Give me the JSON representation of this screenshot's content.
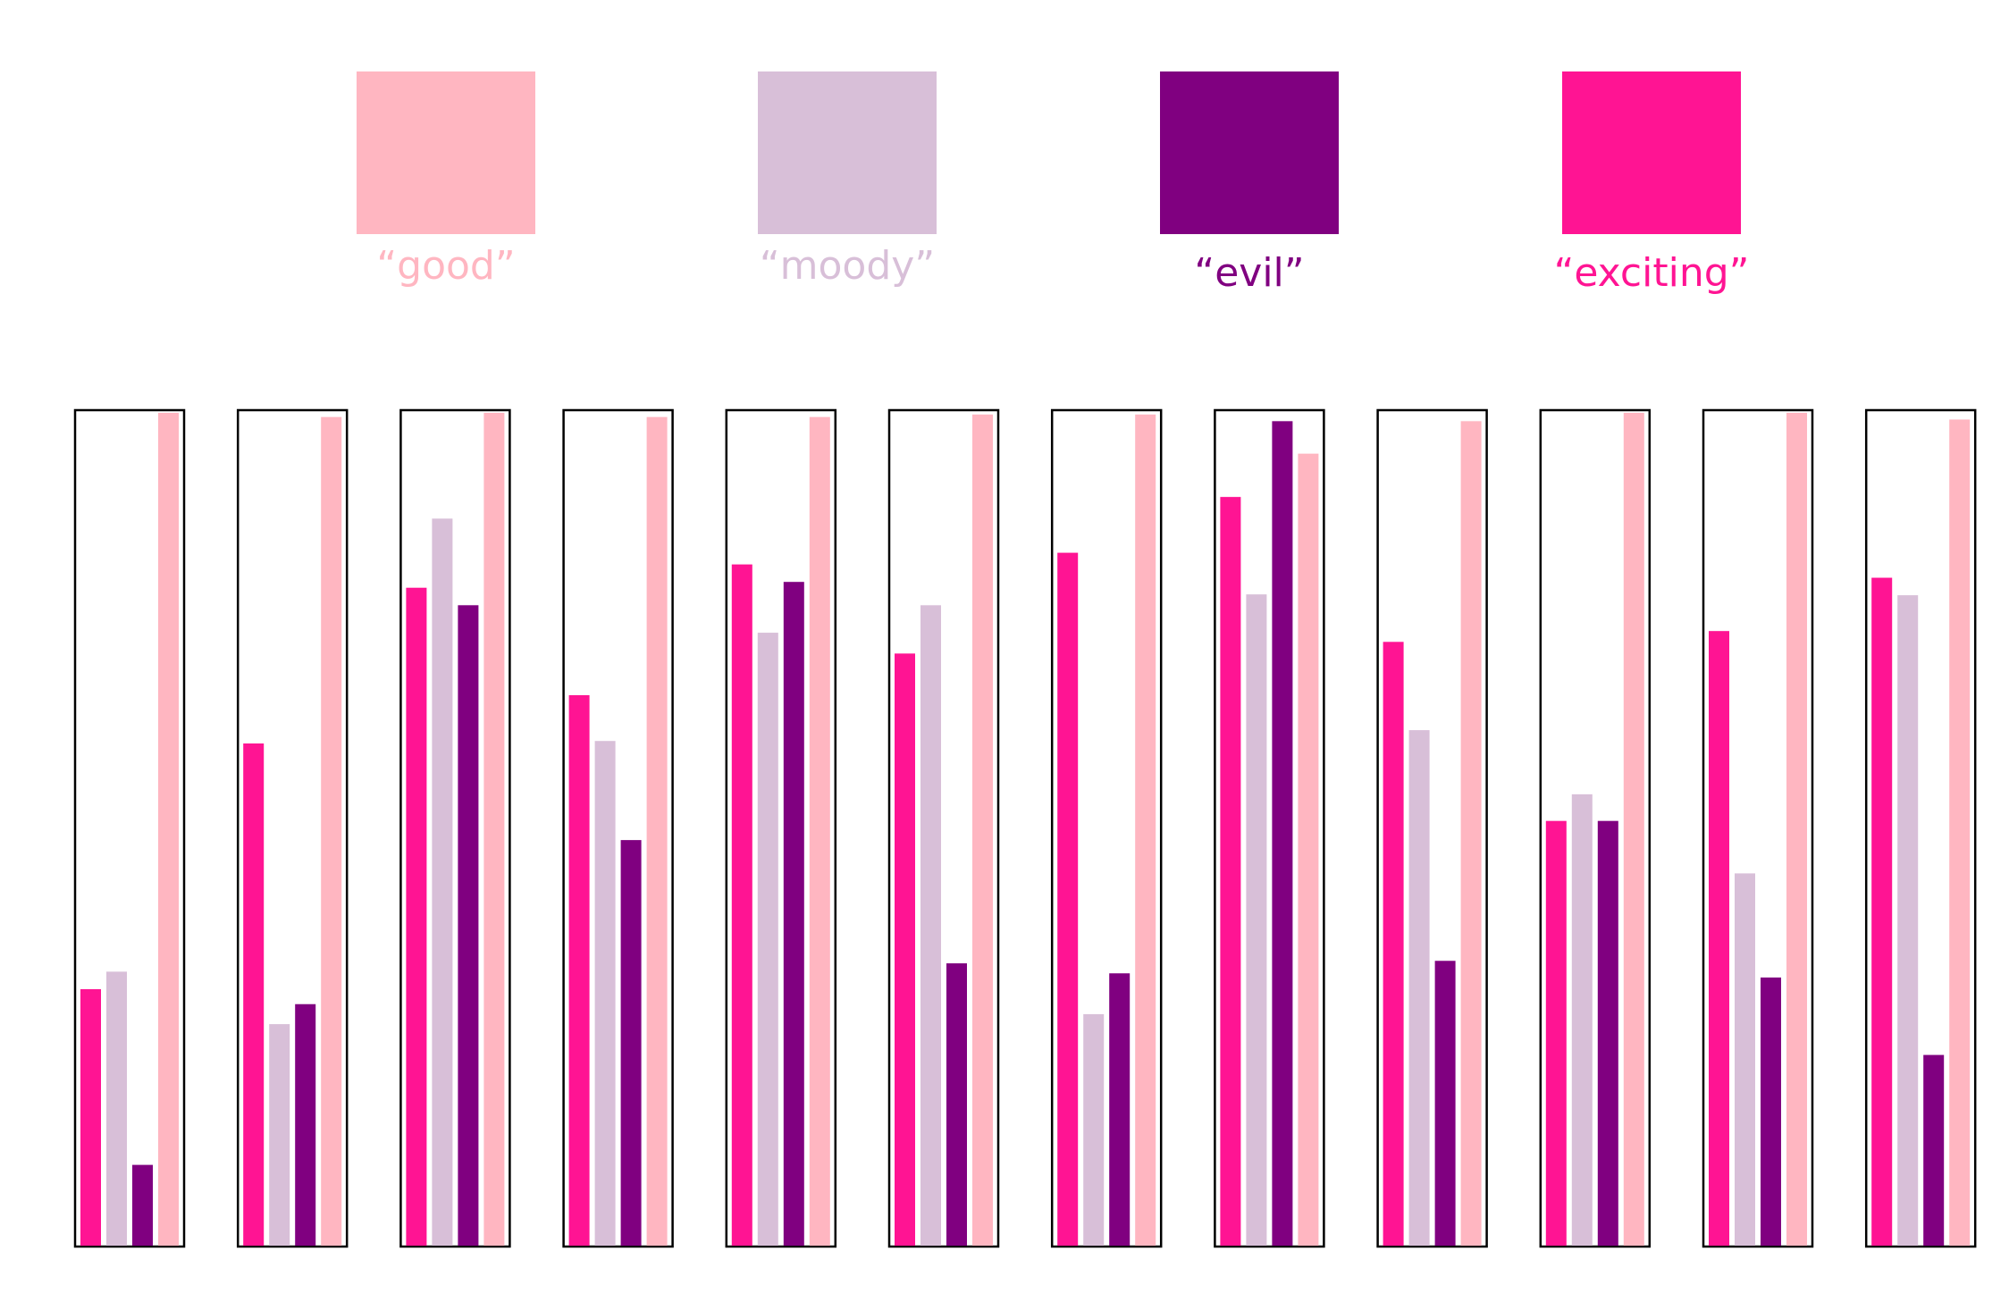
{
  "legend": [
    {
      "label": "“good”",
      "color": "#FFB6C1"
    },
    {
      "label": "“moody”",
      "color": "#D8BFD8"
    },
    {
      "label": "“evil”",
      "color": "#800080"
    },
    {
      "label": "“exciting”",
      "color": "#FF1493"
    }
  ],
  "chart_data": {
    "type": "bar",
    "ylim": [
      0,
      100
    ],
    "grid": false,
    "legend_position": "top",
    "series_order_in_group": [
      "exciting",
      "moody",
      "evil",
      "good"
    ],
    "groups": [
      {
        "exciting": 30.8,
        "moody": 32.9,
        "evil": 9.7,
        "good": 100
      },
      {
        "exciting": 60.3,
        "moody": 26.6,
        "evil": 29.0,
        "good": 99.5
      },
      {
        "exciting": 79.0,
        "moody": 87.3,
        "evil": 76.9,
        "good": 100
      },
      {
        "exciting": 66.1,
        "moody": 60.6,
        "evil": 48.7,
        "good": 99.5
      },
      {
        "exciting": 81.8,
        "moody": 73.6,
        "evil": 79.7,
        "good": 99.5
      },
      {
        "exciting": 71.1,
        "moody": 76.9,
        "evil": 33.9,
        "good": 99.8
      },
      {
        "exciting": 83.2,
        "moody": 27.8,
        "evil": 32.7,
        "good": 99.8
      },
      {
        "exciting": 89.9,
        "moody": 78.2,
        "evil": 99.0,
        "good": 95.1
      },
      {
        "exciting": 72.5,
        "moody": 61.9,
        "evil": 34.2,
        "good": 99.0
      },
      {
        "exciting": 51.0,
        "moody": 54.2,
        "evil": 51.0,
        "good": 100
      },
      {
        "exciting": 73.8,
        "moody": 44.7,
        "evil": 32.2,
        "good": 100
      },
      {
        "exciting": 80.2,
        "moody": 78.1,
        "evil": 22.9,
        "good": 99.2
      }
    ],
    "colors": {
      "good": "#FFB6C1",
      "moody": "#D8BFD8",
      "evil": "#800080",
      "exciting": "#FF1493"
    }
  }
}
